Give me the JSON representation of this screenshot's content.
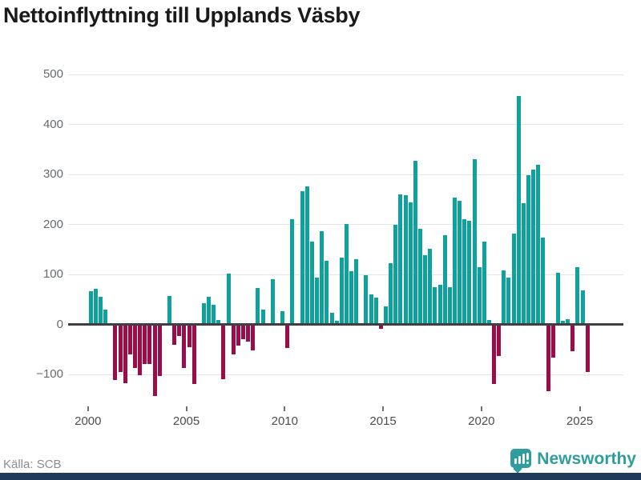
{
  "title": "Nettoinflyttning till Upplands Väsby",
  "footer": {
    "source": "Källa: SCB",
    "brand": "Newsworthy"
  },
  "colors": {
    "positive_bar": "#0fa29c",
    "negative_bar": "#9b0c48",
    "zero_axis": "#3c4044",
    "gridline": "#e4e4e4",
    "y_label": "#666a6e",
    "x_label": "#4d4d4d",
    "title": "#1a1a1a",
    "source_text": "#8c8c8c",
    "brand_teal": "#2f9d9d",
    "bottom_strip": "#1f3b5c"
  },
  "chart_data": {
    "type": "bar",
    "title": "Nettoinflyttning till Upplands Väsby",
    "resolution": "quarterly",
    "start_year": 2000,
    "periods_per_year": 4,
    "x_tick_labels": [
      "2000",
      "2005",
      "2010",
      "2015",
      "2020",
      "2025"
    ],
    "y_ticks": [
      500,
      400,
      300,
      200,
      100,
      0,
      -100
    ],
    "ylim": [
      -150,
      500
    ],
    "grid": "horizontal",
    "legend": "none",
    "values": [
      65,
      70,
      54,
      28,
      0,
      -108,
      -92,
      -115,
      -57,
      -84,
      -98,
      -76,
      -76,
      -140,
      -100,
      0,
      55,
      -38,
      -20,
      -84,
      -43,
      -116,
      0,
      40,
      54,
      38,
      7,
      -106,
      100,
      -57,
      -40,
      -26,
      -31,
      -49,
      71,
      27,
      0,
      88,
      0,
      25,
      -45,
      208,
      0,
      264,
      274,
      163,
      91,
      185,
      125,
      22,
      5,
      132,
      199,
      104,
      129,
      0,
      96,
      58,
      51,
      -6,
      34,
      121,
      197,
      258,
      256,
      242,
      326,
      189,
      136,
      149,
      73,
      78,
      177,
      73,
      252,
      246,
      208,
      206,
      329,
      113,
      163,
      7,
      -116,
      -60,
      106,
      91,
      179,
      455,
      240,
      297,
      307,
      318,
      171,
      -130,
      -64,
      101,
      6,
      9,
      -50,
      112,
      66,
      -92
    ]
  }
}
